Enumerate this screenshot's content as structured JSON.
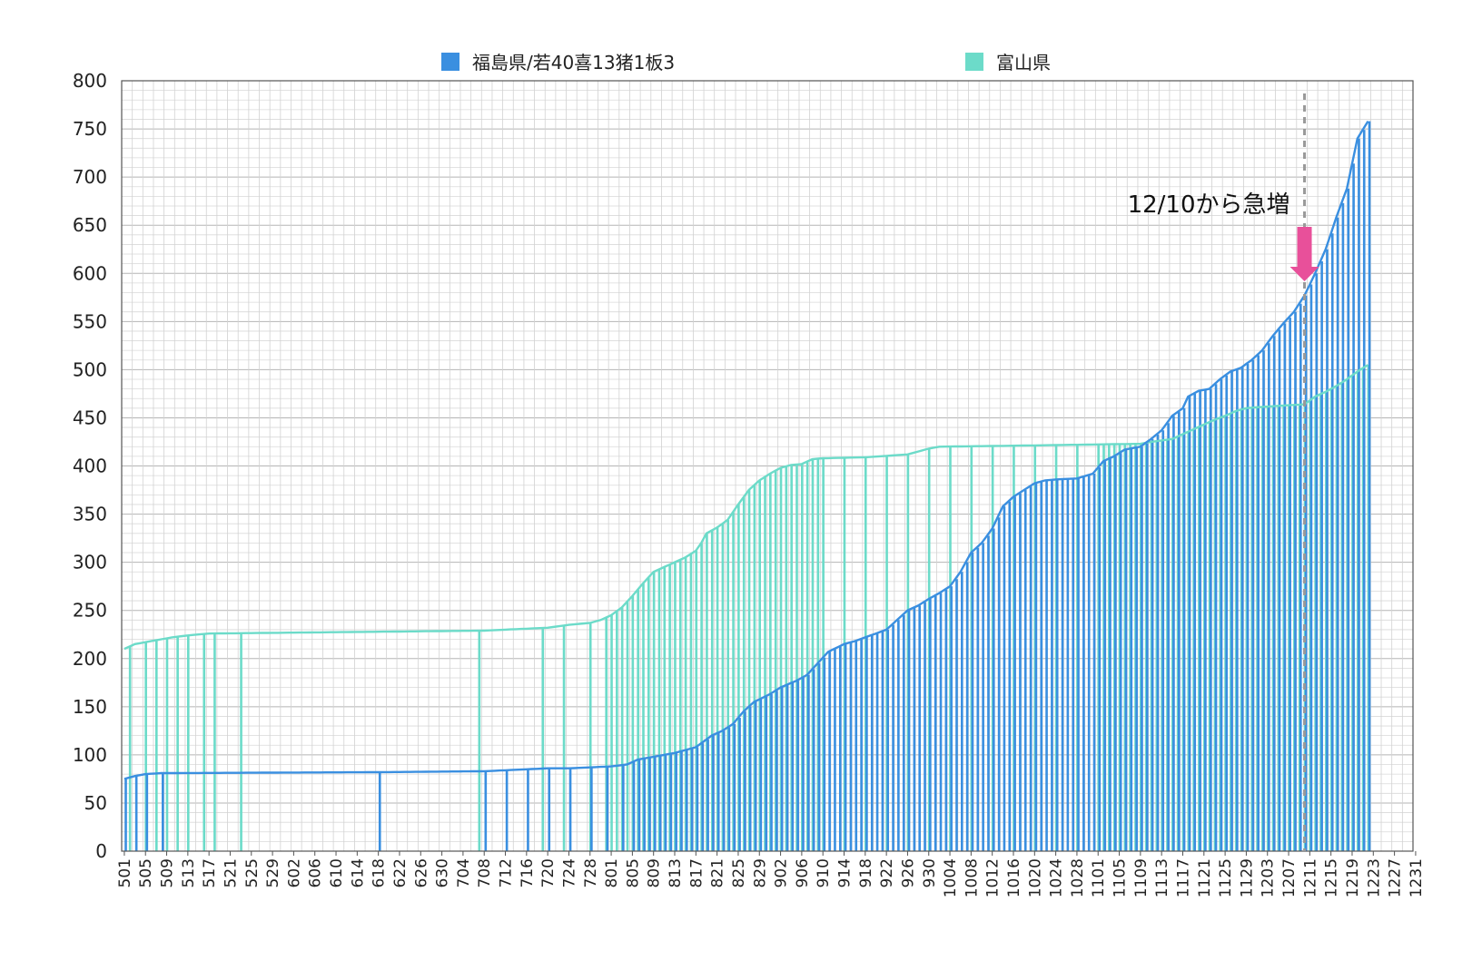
{
  "chart_data": {
    "type": "bar",
    "title": "",
    "xlabel": "",
    "ylabel": "",
    "ylim": [
      0,
      800
    ],
    "y_ticks": [
      0,
      50,
      100,
      150,
      200,
      250,
      300,
      350,
      400,
      450,
      500,
      550,
      600,
      650,
      700,
      750,
      800
    ],
    "x_ticks": [
      "501",
      "505",
      "509",
      "513",
      "517",
      "521",
      "525",
      "529",
      "602",
      "606",
      "610",
      "614",
      "618",
      "622",
      "626",
      "630",
      "704",
      "708",
      "712",
      "716",
      "720",
      "724",
      "728",
      "801",
      "805",
      "809",
      "813",
      "817",
      "821",
      "825",
      "829",
      "902",
      "906",
      "910",
      "914",
      "918",
      "922",
      "926",
      "930",
      "1004",
      "1008",
      "1012",
      "1016",
      "1020",
      "1024",
      "1028",
      "1101",
      "1105",
      "1109",
      "1113",
      "1117",
      "1121",
      "1125",
      "1129",
      "1203",
      "1207",
      "1211",
      "1215",
      "1219",
      "1223",
      "1227",
      "1231"
    ],
    "grid": true,
    "legend_position": "top",
    "series": [
      {
        "name": "福島県/若40喜13猪1板3",
        "color": "#3a8fe0",
        "points": [
          [
            "501",
            75
          ],
          [
            "503",
            78
          ],
          [
            "505",
            80
          ],
          [
            "508",
            81
          ],
          [
            "618",
            82
          ],
          [
            "708",
            83
          ],
          [
            "712",
            84
          ],
          [
            "716",
            85
          ],
          [
            "720",
            86
          ],
          [
            "724",
            86
          ],
          [
            "728",
            87
          ],
          [
            "801",
            88
          ],
          [
            "804",
            90
          ],
          [
            "806",
            95
          ],
          [
            "809",
            98
          ],
          [
            "813",
            102
          ],
          [
            "817",
            108
          ],
          [
            "818",
            112
          ],
          [
            "820",
            120
          ],
          [
            "822",
            125
          ],
          [
            "824",
            132
          ],
          [
            "826",
            145
          ],
          [
            "828",
            155
          ],
          [
            "831",
            163
          ],
          [
            "902",
            170
          ],
          [
            "905",
            177
          ],
          [
            "907",
            183
          ],
          [
            "909",
            195
          ],
          [
            "911",
            207
          ],
          [
            "914",
            215
          ],
          [
            "916",
            218
          ],
          [
            "918",
            222
          ],
          [
            "922",
            230
          ],
          [
            "924",
            240
          ],
          [
            "926",
            250
          ],
          [
            "928",
            255
          ],
          [
            "930",
            262
          ],
          [
            "1002",
            268
          ],
          [
            "1004",
            275
          ],
          [
            "1006",
            290
          ],
          [
            "1008",
            310
          ],
          [
            "1010",
            320
          ],
          [
            "1012",
            335
          ],
          [
            "1014",
            358
          ],
          [
            "1016",
            368
          ],
          [
            "1018",
            375
          ],
          [
            "1020",
            382
          ],
          [
            "1022",
            385
          ],
          [
            "1024",
            386
          ],
          [
            "1028",
            387
          ],
          [
            "1031",
            392
          ],
          [
            "1102",
            405
          ],
          [
            "1104",
            410
          ],
          [
            "1106",
            417
          ],
          [
            "1109",
            420
          ],
          [
            "1111",
            428
          ],
          [
            "1113",
            437
          ],
          [
            "1115",
            452
          ],
          [
            "1117",
            460
          ],
          [
            "1118",
            472
          ],
          [
            "1120",
            478
          ],
          [
            "1122",
            480
          ],
          [
            "1124",
            490
          ],
          [
            "1126",
            498
          ],
          [
            "1128",
            502
          ],
          [
            "1130",
            510
          ],
          [
            "1202",
            520
          ],
          [
            "1204",
            535
          ],
          [
            "1206",
            548
          ],
          [
            "1208",
            560
          ],
          [
            "1210",
            577
          ],
          [
            "1212",
            600
          ],
          [
            "1214",
            625
          ],
          [
            "1216",
            658
          ],
          [
            "1218",
            688
          ],
          [
            "1220",
            740
          ],
          [
            "1222",
            758
          ]
        ]
      },
      {
        "name": "富山県",
        "color": "#6cdbc9",
        "points": [
          [
            "501",
            210
          ],
          [
            "503",
            215
          ],
          [
            "506",
            218
          ],
          [
            "510",
            222
          ],
          [
            "513",
            224
          ],
          [
            "517",
            226
          ],
          [
            "708",
            229
          ],
          [
            "720",
            232
          ],
          [
            "724",
            235
          ],
          [
            "728",
            237
          ],
          [
            "730",
            240
          ],
          [
            "801",
            245
          ],
          [
            "803",
            253
          ],
          [
            "805",
            265
          ],
          [
            "807",
            278
          ],
          [
            "809",
            290
          ],
          [
            "811",
            295
          ],
          [
            "813",
            300
          ],
          [
            "815",
            305
          ],
          [
            "817",
            312
          ],
          [
            "818",
            320
          ],
          [
            "819",
            330
          ],
          [
            "821",
            336
          ],
          [
            "823",
            344
          ],
          [
            "825",
            360
          ],
          [
            "827",
            375
          ],
          [
            "829",
            385
          ],
          [
            "831",
            392
          ],
          [
            "902",
            398
          ],
          [
            "904",
            401
          ],
          [
            "906",
            402
          ],
          [
            "908",
            407
          ],
          [
            "910",
            408
          ],
          [
            "918",
            409
          ],
          [
            "926",
            412
          ],
          [
            "928",
            415
          ],
          [
            "930",
            418
          ],
          [
            "1002",
            420
          ],
          [
            "1016",
            421
          ],
          [
            "1109",
            423
          ],
          [
            "1111",
            425
          ],
          [
            "1115",
            428
          ],
          [
            "1117",
            433
          ],
          [
            "1119",
            438
          ],
          [
            "1121",
            443
          ],
          [
            "1123",
            448
          ],
          [
            "1125",
            452
          ],
          [
            "1127",
            457
          ],
          [
            "1129",
            460
          ],
          [
            "1201",
            461
          ],
          [
            "1210",
            464
          ],
          [
            "1212",
            472
          ],
          [
            "1214",
            477
          ],
          [
            "1216",
            483
          ],
          [
            "1218",
            490
          ],
          [
            "1220",
            498
          ],
          [
            "1222",
            505
          ]
        ]
      }
    ],
    "annotations": [
      {
        "text": "12/10から急増",
        "at": "1210"
      }
    ]
  }
}
